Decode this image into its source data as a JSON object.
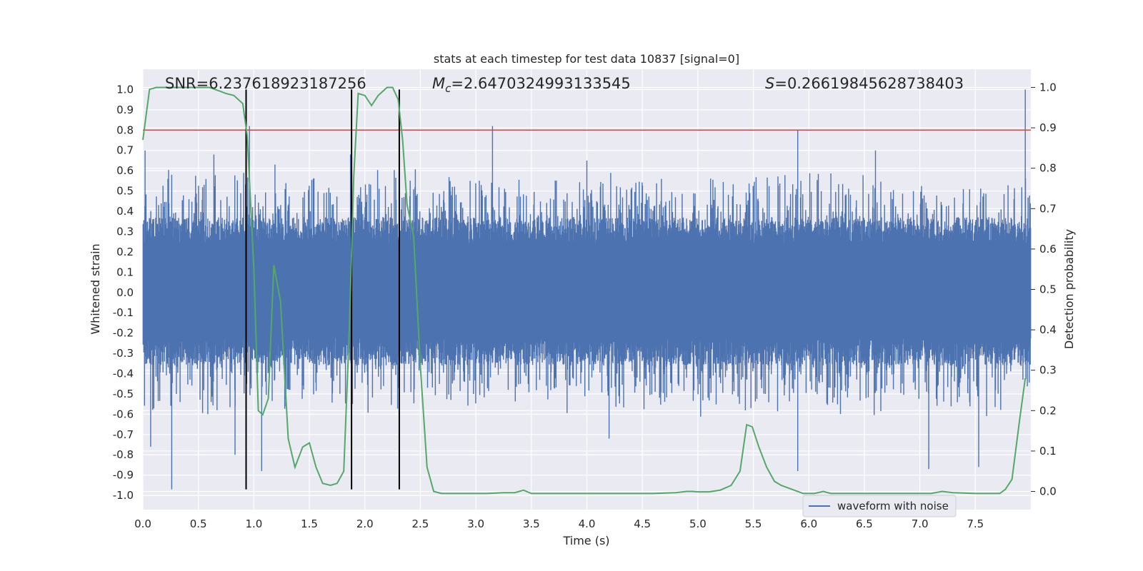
{
  "chart_data": {
    "type": "line",
    "title": "stats at each timestep for test data 10837 [signal=0]",
    "xlabel": "Time (s)",
    "ylabel": "Whitened strain",
    "y2label": "Detection probability",
    "xlim": [
      0.0,
      8.0
    ],
    "ylim": [
      -1.07,
      1.1
    ],
    "y2lim": [
      -0.045,
      1.045
    ],
    "xticks": [
      "0.0",
      "0.5",
      "1.0",
      "1.5",
      "2.0",
      "2.5",
      "3.0",
      "3.5",
      "4.0",
      "4.5",
      "5.0",
      "5.5",
      "6.0",
      "6.5",
      "7.0",
      "7.5"
    ],
    "yticks": [
      "-1.0",
      "-0.9",
      "-0.8",
      "-0.7",
      "-0.6",
      "-0.5",
      "-0.4",
      "-0.3",
      "-0.2",
      "-0.1",
      "0.0",
      "0.1",
      "0.2",
      "0.3",
      "0.4",
      "0.5",
      "0.6",
      "0.7",
      "0.8",
      "0.9",
      "1.0"
    ],
    "y2ticks": [
      "0.0",
      "0.1",
      "0.2",
      "0.3",
      "0.4",
      "0.5",
      "0.6",
      "0.7",
      "0.8",
      "0.9",
      "1.0"
    ],
    "annotations": {
      "snr": "SNR=6.237618923187256",
      "mc_symbol": "M",
      "mc_sub": "c",
      "mc_value": "=2.6470324993133545",
      "s_symbol": "S",
      "s_value": "=0.26619845628738403"
    },
    "threshold": {
      "value": 0.8,
      "axis": "left",
      "color": "#c44e52"
    },
    "vertical_lines": [
      0.93,
      1.88,
      2.31
    ],
    "vertical_line_range": [
      -0.97,
      1.0
    ],
    "waveform": {
      "name": "waveform with noise",
      "color": "#4c72b0",
      "core_band": [
        -0.19,
        0.22
      ],
      "typical_envelope": [
        -0.38,
        0.38
      ],
      "peaks": [
        {
          "t": 0.02,
          "v": 0.7
        },
        {
          "t": 0.26,
          "v": 0.58
        },
        {
          "t": 0.64,
          "v": 0.68
        },
        {
          "t": 0.96,
          "v": 0.82
        },
        {
          "t": 1.19,
          "v": 0.63
        },
        {
          "t": 1.87,
          "v": 0.68
        },
        {
          "t": 3.15,
          "v": 0.82
        },
        {
          "t": 4.0,
          "v": 0.65
        },
        {
          "t": 5.9,
          "v": 0.8
        },
        {
          "t": 6.6,
          "v": 0.7
        },
        {
          "t": 7.95,
          "v": 1.0
        }
      ],
      "troughs": [
        {
          "t": 0.26,
          "v": -0.97
        },
        {
          "t": 0.07,
          "v": -0.76
        },
        {
          "t": 0.83,
          "v": -0.8
        },
        {
          "t": 1.07,
          "v": -0.88
        },
        {
          "t": 1.88,
          "v": -0.9
        },
        {
          "t": 4.2,
          "v": -0.72
        },
        {
          "t": 5.9,
          "v": -0.88
        },
        {
          "t": 7.08,
          "v": -0.87
        },
        {
          "t": 7.53,
          "v": -0.86
        }
      ]
    },
    "probability": {
      "name": "detection probability",
      "color": "#55a868",
      "t": [
        0.0,
        0.06,
        0.12,
        0.2,
        0.3,
        0.4,
        0.5,
        0.6,
        0.7,
        0.75,
        0.82,
        0.9,
        0.94,
        1.0,
        1.04,
        1.08,
        1.13,
        1.18,
        1.24,
        1.31,
        1.37,
        1.44,
        1.5,
        1.56,
        1.62,
        1.69,
        1.75,
        1.81,
        1.86,
        1.9,
        1.94,
        2.0,
        2.06,
        2.12,
        2.2,
        2.25,
        2.3,
        2.34,
        2.38,
        2.44,
        2.5,
        2.56,
        2.62,
        2.69,
        2.75,
        2.85,
        3.0,
        3.1,
        3.25,
        3.35,
        3.43,
        3.5,
        3.6,
        3.7,
        3.8,
        4.0,
        4.2,
        4.4,
        4.6,
        4.8,
        4.9,
        4.95,
        5.0,
        5.1,
        5.2,
        5.3,
        5.38,
        5.44,
        5.49,
        5.55,
        5.62,
        5.69,
        5.75,
        5.85,
        5.95,
        6.05,
        6.13,
        6.2,
        6.35,
        6.5,
        6.7,
        6.9,
        7.1,
        7.2,
        7.3,
        7.5,
        7.62,
        7.72,
        7.77,
        7.83,
        7.9,
        7.95
      ],
      "p": [
        0.87,
        0.995,
        1.0,
        1.0,
        1.0,
        1.0,
        1.0,
        1.0,
        0.99,
        0.985,
        0.98,
        0.96,
        0.88,
        0.55,
        0.2,
        0.19,
        0.23,
        0.56,
        0.47,
        0.13,
        0.06,
        0.11,
        0.12,
        0.06,
        0.02,
        0.015,
        0.02,
        0.05,
        0.4,
        0.78,
        0.985,
        0.98,
        0.955,
        0.98,
        1.0,
        1.0,
        0.97,
        0.87,
        0.71,
        0.63,
        0.31,
        0.06,
        0.0,
        -0.005,
        -0.005,
        -0.005,
        -0.005,
        -0.005,
        -0.003,
        -0.003,
        0.003,
        -0.005,
        -0.005,
        -0.005,
        -0.005,
        -0.005,
        -0.005,
        -0.005,
        -0.005,
        -0.003,
        0.0,
        0.0,
        -0.001,
        -0.001,
        0.003,
        0.015,
        0.05,
        0.165,
        0.16,
        0.11,
        0.06,
        0.025,
        0.015,
        0.005,
        -0.005,
        -0.005,
        0.0,
        -0.005,
        -0.005,
        -0.005,
        -0.005,
        -0.005,
        -0.005,
        0.0,
        -0.003,
        -0.005,
        -0.005,
        -0.005,
        0.005,
        0.03,
        0.18,
        0.28
      ]
    },
    "legend": {
      "position": "bottom-right",
      "entries": [
        "waveform with noise"
      ]
    },
    "grid": true,
    "colors": {
      "background": "#eaeaf2",
      "grid": "#ffffff",
      "vertical_line": "#000000",
      "text": "#262626"
    }
  }
}
